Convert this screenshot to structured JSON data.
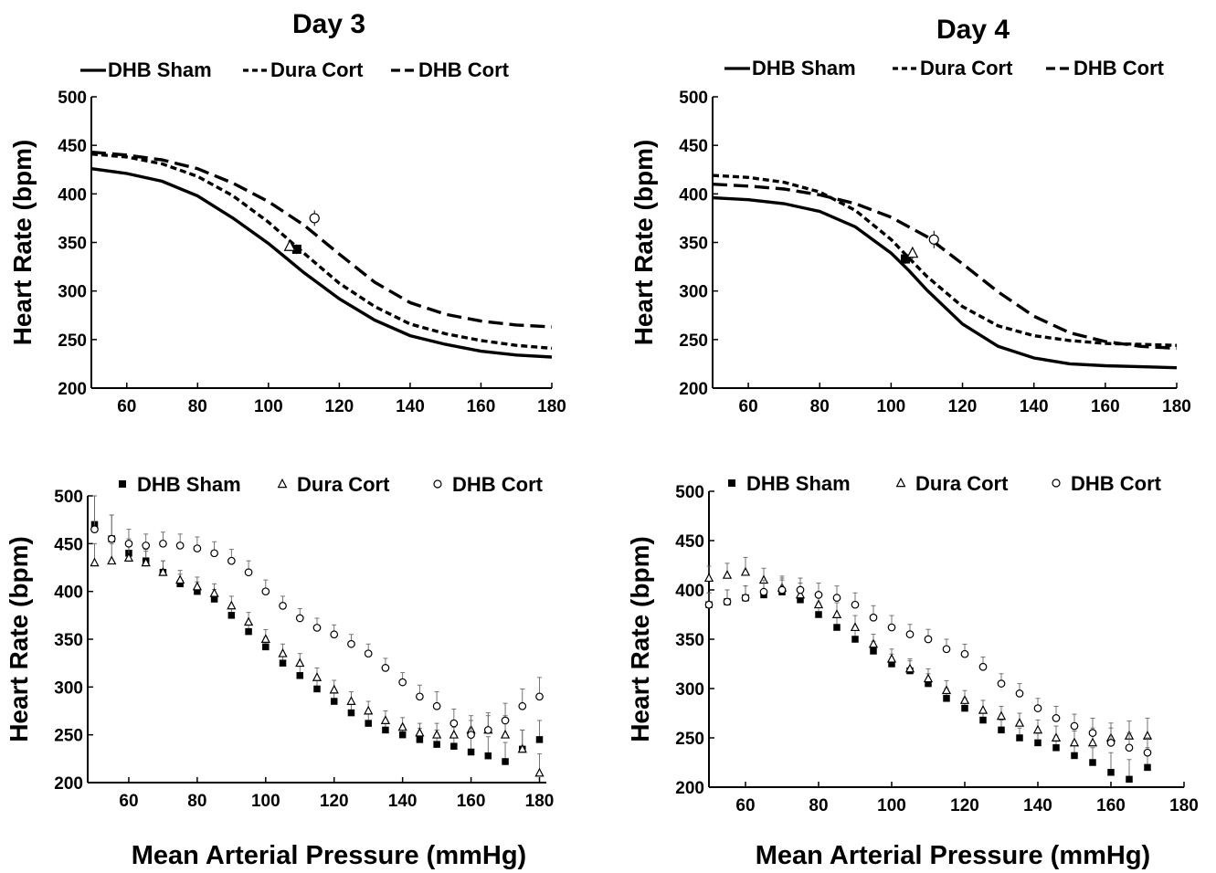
{
  "figure": {
    "titles": [
      "Day 3",
      "Day 4"
    ],
    "xlabel": "Mean Arterial Pressure (mmHg)"
  },
  "chart_data": [
    {
      "id": "day3-curves",
      "type": "line",
      "title": "Day 3",
      "xlabel": "",
      "ylabel": "Heart Rate (bpm)",
      "xlim": [
        50,
        180
      ],
      "ylim": [
        200,
        500
      ],
      "xticks": [
        60,
        80,
        100,
        120,
        140,
        160,
        180
      ],
      "yticks": [
        200,
        250,
        300,
        350,
        400,
        450,
        500
      ],
      "legend_position": "top",
      "series": [
        {
          "name": "DHB Sham",
          "style": "solid",
          "x": [
            50,
            60,
            70,
            80,
            90,
            100,
            105,
            110,
            120,
            130,
            140,
            150,
            160,
            170,
            180
          ],
          "y": [
            426,
            421,
            413,
            398,
            375,
            349,
            334,
            319,
            292,
            270,
            254,
            245,
            238,
            234,
            232
          ],
          "point": {
            "x": 108,
            "y": 343,
            "err": 5
          }
        },
        {
          "name": "Dura Cort",
          "style": "dotted",
          "x": [
            50,
            60,
            70,
            80,
            90,
            100,
            105,
            110,
            120,
            130,
            140,
            150,
            160,
            170,
            180
          ],
          "y": [
            441,
            438,
            431,
            418,
            398,
            371,
            355,
            339,
            308,
            284,
            266,
            256,
            249,
            244,
            241
          ],
          "point": {
            "x": 106,
            "y": 346,
            "err": 5
          }
        },
        {
          "name": "DHB Cort",
          "style": "dashed",
          "x": [
            50,
            60,
            70,
            80,
            90,
            100,
            110,
            120,
            130,
            140,
            150,
            160,
            170,
            180
          ],
          "y": [
            443,
            440,
            435,
            426,
            411,
            392,
            368,
            338,
            309,
            288,
            276,
            269,
            265,
            263
          ],
          "point": {
            "x": 113,
            "y": 375,
            "err": 8
          }
        }
      ]
    },
    {
      "id": "day4-curves",
      "type": "line",
      "title": "Day 4",
      "xlabel": "",
      "ylabel": "Heart Rate (bpm)",
      "xlim": [
        50,
        180
      ],
      "ylim": [
        200,
        500
      ],
      "xticks": [
        60,
        80,
        100,
        120,
        140,
        160,
        180
      ],
      "yticks": [
        200,
        250,
        300,
        350,
        400,
        450,
        500
      ],
      "legend_position": "top",
      "series": [
        {
          "name": "DHB Sham",
          "style": "solid",
          "x": [
            50,
            60,
            70,
            80,
            90,
            100,
            105,
            110,
            120,
            130,
            140,
            150,
            160,
            170,
            180
          ],
          "y": [
            396,
            394,
            390,
            382,
            366,
            339,
            321,
            301,
            266,
            243,
            231,
            225,
            223,
            222,
            221
          ],
          "point": {
            "x": 104,
            "y": 333,
            "err": 5
          }
        },
        {
          "name": "Dura Cort",
          "style": "dotted",
          "x": [
            50,
            60,
            70,
            80,
            90,
            100,
            105,
            110,
            120,
            130,
            140,
            150,
            160,
            170,
            180
          ],
          "y": [
            419,
            417,
            412,
            402,
            383,
            353,
            334,
            315,
            284,
            264,
            254,
            249,
            246,
            245,
            244
          ],
          "point": {
            "x": 106,
            "y": 339,
            "err": 6
          }
        },
        {
          "name": "DHB Cort",
          "style": "dashed",
          "x": [
            50,
            60,
            70,
            80,
            90,
            100,
            110,
            120,
            130,
            140,
            150,
            160,
            170,
            180
          ],
          "y": [
            410,
            408,
            405,
            399,
            390,
            376,
            356,
            328,
            299,
            274,
            257,
            248,
            243,
            241
          ],
          "point": {
            "x": 112,
            "y": 353,
            "err": 9
          }
        }
      ]
    },
    {
      "id": "day3-scatter",
      "type": "scatter",
      "title": "",
      "xlabel": "Mean Arterial Pressure (mmHg)",
      "ylabel": "Heart Rate (bpm)",
      "xlim": [
        48,
        182
      ],
      "ylim": [
        200,
        500
      ],
      "xticks": [
        60,
        80,
        100,
        120,
        140,
        160,
        180
      ],
      "yticks": [
        200,
        250,
        300,
        350,
        400,
        450,
        500
      ],
      "legend_position": "top",
      "series": [
        {
          "name": "DHB Sham",
          "marker": "square",
          "x": [
            50,
            55,
            60,
            65,
            70,
            75,
            80,
            85,
            90,
            95,
            100,
            105,
            110,
            115,
            120,
            125,
            130,
            135,
            140,
            145,
            150,
            155,
            160,
            165,
            170,
            175,
            180
          ],
          "y": [
            470,
            455,
            440,
            432,
            420,
            408,
            400,
            392,
            375,
            358,
            342,
            325,
            312,
            298,
            285,
            273,
            262,
            255,
            250,
            245,
            240,
            238,
            232,
            228,
            222,
            235,
            245
          ],
          "err": [
            30,
            25,
            15,
            12,
            12,
            10,
            10,
            10,
            10,
            10,
            10,
            10,
            10,
            10,
            10,
            10,
            10,
            10,
            10,
            12,
            15,
            20,
            20,
            20,
            20,
            20,
            20
          ]
        },
        {
          "name": "Dura Cort",
          "marker": "triangle",
          "x": [
            50,
            55,
            60,
            65,
            70,
            75,
            80,
            85,
            90,
            95,
            100,
            105,
            110,
            115,
            120,
            125,
            130,
            135,
            140,
            145,
            150,
            155,
            160,
            165,
            170,
            175,
            180
          ],
          "y": [
            430,
            432,
            435,
            430,
            420,
            412,
            405,
            398,
            385,
            368,
            350,
            335,
            325,
            310,
            297,
            285,
            275,
            265,
            258,
            252,
            250,
            250,
            255,
            255,
            250,
            235,
            210
          ],
          "err": [
            20,
            18,
            15,
            12,
            12,
            10,
            10,
            10,
            10,
            10,
            10,
            10,
            10,
            10,
            10,
            10,
            10,
            10,
            10,
            10,
            12,
            15,
            15,
            18,
            20,
            20,
            20
          ]
        },
        {
          "name": "DHB Cort",
          "marker": "circle",
          "x": [
            50,
            55,
            60,
            65,
            70,
            75,
            80,
            85,
            90,
            95,
            100,
            105,
            110,
            115,
            120,
            125,
            130,
            135,
            140,
            145,
            150,
            155,
            160,
            165,
            170,
            175,
            180
          ],
          "y": [
            465,
            455,
            450,
            448,
            450,
            448,
            445,
            440,
            432,
            420,
            400,
            385,
            372,
            362,
            355,
            345,
            335,
            320,
            305,
            290,
            280,
            262,
            250,
            255,
            265,
            280,
            290
          ],
          "err": [
            35,
            25,
            15,
            12,
            12,
            12,
            12,
            12,
            12,
            12,
            12,
            10,
            10,
            10,
            10,
            10,
            10,
            10,
            10,
            12,
            15,
            15,
            15,
            15,
            18,
            18,
            20
          ]
        }
      ]
    },
    {
      "id": "day4-scatter",
      "type": "scatter",
      "title": "",
      "xlabel": "Mean Arterial Pressure (mmHg)",
      "ylabel": "Heart Rate (bpm)",
      "xlim": [
        50,
        180
      ],
      "ylim": [
        200,
        500
      ],
      "xticks": [
        60,
        80,
        100,
        120,
        140,
        160,
        180
      ],
      "yticks": [
        200,
        250,
        300,
        350,
        400,
        450,
        500
      ],
      "legend_position": "top",
      "series": [
        {
          "name": "DHB Sham",
          "marker": "square",
          "x": [
            50,
            55,
            60,
            65,
            70,
            75,
            80,
            85,
            90,
            95,
            100,
            105,
            110,
            115,
            120,
            125,
            130,
            135,
            140,
            145,
            150,
            155,
            160,
            165,
            170
          ],
          "y": [
            385,
            388,
            392,
            395,
            398,
            390,
            375,
            362,
            350,
            338,
            325,
            318,
            305,
            290,
            280,
            268,
            258,
            250,
            245,
            240,
            232,
            225,
            215,
            208,
            220
          ],
          "err": [
            12,
            12,
            12,
            12,
            12,
            12,
            12,
            12,
            12,
            10,
            10,
            10,
            10,
            10,
            10,
            10,
            10,
            10,
            10,
            12,
            15,
            15,
            20,
            20,
            20
          ]
        },
        {
          "name": "Dura Cort",
          "marker": "triangle",
          "x": [
            50,
            55,
            60,
            65,
            70,
            75,
            80,
            85,
            90,
            95,
            100,
            105,
            110,
            115,
            120,
            125,
            130,
            135,
            140,
            145,
            150,
            155,
            160,
            165,
            170
          ],
          "y": [
            412,
            415,
            418,
            410,
            402,
            395,
            385,
            375,
            362,
            345,
            330,
            320,
            310,
            298,
            288,
            278,
            272,
            265,
            258,
            250,
            245,
            245,
            250,
            252,
            252
          ],
          "err": [
            12,
            12,
            15,
            12,
            12,
            12,
            12,
            12,
            12,
            10,
            10,
            10,
            10,
            10,
            10,
            10,
            10,
            10,
            10,
            12,
            12,
            15,
            15,
            15,
            18
          ]
        },
        {
          "name": "DHB Cort",
          "marker": "circle",
          "x": [
            50,
            55,
            60,
            65,
            70,
            75,
            80,
            85,
            90,
            95,
            100,
            105,
            110,
            115,
            120,
            125,
            130,
            135,
            140,
            145,
            150,
            155,
            160,
            165,
            170
          ],
          "y": [
            385,
            388,
            392,
            398,
            400,
            400,
            395,
            392,
            385,
            372,
            362,
            355,
            350,
            340,
            335,
            322,
            305,
            295,
            280,
            270,
            262,
            255,
            245,
            240,
            235
          ],
          "err": [
            12,
            12,
            12,
            12,
            12,
            12,
            12,
            12,
            12,
            12,
            12,
            10,
            10,
            10,
            10,
            10,
            10,
            10,
            10,
            12,
            12,
            15,
            15,
            15,
            15
          ]
        }
      ]
    }
  ]
}
